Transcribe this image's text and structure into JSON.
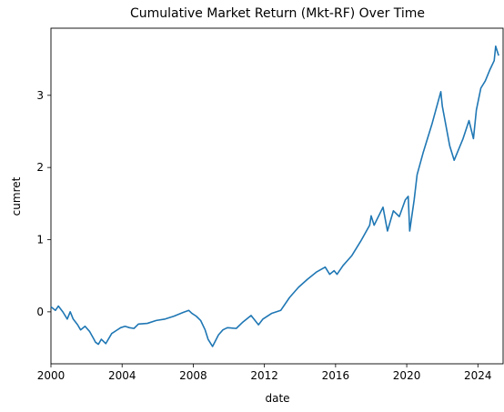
{
  "chart_data": {
    "type": "line",
    "title": "Cumulative Market Return (Mkt-RF) Over Time",
    "xlabel": "date",
    "ylabel": "cumret",
    "xlim": [
      "2000-01",
      "2025-06"
    ],
    "ylim": [
      -0.72,
      3.93
    ],
    "grid": false,
    "x_ticks": [
      "2000",
      "2004",
      "2008",
      "2012",
      "2016",
      "2020",
      "2024"
    ],
    "y_ticks": [
      "0",
      "1",
      "2",
      "3"
    ],
    "line_color": "#1f77b4",
    "series": [
      {
        "x": [
          "2000-01",
          "2000-04",
          "2000-06",
          "2000-09",
          "2000-12",
          "2001-02",
          "2001-04",
          "2001-07",
          "2001-09",
          "2001-12",
          "2002-03",
          "2002-06",
          "2002-07",
          "2002-09",
          "2002-11",
          "2003-02",
          "2003-06",
          "2003-09",
          "2003-12",
          "2004-03",
          "2004-06",
          "2004-09",
          "2004-12",
          "2005-06",
          "2005-12",
          "2006-06",
          "2006-12",
          "2007-06",
          "2007-10",
          "2007-12",
          "2008-03",
          "2008-06",
          "2008-09",
          "2008-11",
          "2009-02",
          "2009-06",
          "2009-09",
          "2009-12",
          "2010-06",
          "2010-10",
          "2011-04",
          "2011-09",
          "2011-12",
          "2012-06",
          "2012-12",
          "2013-06",
          "2013-12",
          "2014-06",
          "2014-12",
          "2015-06",
          "2015-09",
          "2015-12",
          "2016-02",
          "2016-06",
          "2016-12",
          "2017-06",
          "2017-12",
          "2018-01",
          "2018-03",
          "2018-09",
          "2018-12",
          "2019-04",
          "2019-08",
          "2019-12",
          "2020-02",
          "2020-03",
          "2020-06",
          "2020-08",
          "2020-12",
          "2021-06",
          "2021-12",
          "2022-01",
          "2022-06",
          "2022-09",
          "2022-12",
          "2023-03",
          "2023-07",
          "2023-10",
          "2023-12",
          "2024-03",
          "2024-06",
          "2024-09",
          "2024-12",
          "2025-01",
          "2025-03"
        ],
        "values": [
          0.07,
          0.02,
          0.08,
          0.0,
          -0.1,
          0.0,
          -0.1,
          -0.18,
          -0.25,
          -0.2,
          -0.27,
          -0.38,
          -0.42,
          -0.45,
          -0.38,
          -0.44,
          -0.3,
          -0.26,
          -0.22,
          -0.2,
          -0.22,
          -0.23,
          -0.17,
          -0.16,
          -0.12,
          -0.1,
          -0.06,
          -0.01,
          0.02,
          -0.02,
          -0.06,
          -0.12,
          -0.25,
          -0.38,
          -0.48,
          -0.32,
          -0.25,
          -0.22,
          -0.23,
          -0.15,
          -0.05,
          -0.18,
          -0.1,
          -0.02,
          0.02,
          0.2,
          0.34,
          0.45,
          0.55,
          0.62,
          0.52,
          0.57,
          0.52,
          0.64,
          0.78,
          0.98,
          1.2,
          1.33,
          1.2,
          1.45,
          1.12,
          1.4,
          1.32,
          1.55,
          1.6,
          1.12,
          1.55,
          1.9,
          2.2,
          2.6,
          3.05,
          2.85,
          2.3,
          2.1,
          2.25,
          2.4,
          2.65,
          2.4,
          2.8,
          3.1,
          3.2,
          3.35,
          3.48,
          3.68,
          3.55
        ]
      }
    ]
  }
}
